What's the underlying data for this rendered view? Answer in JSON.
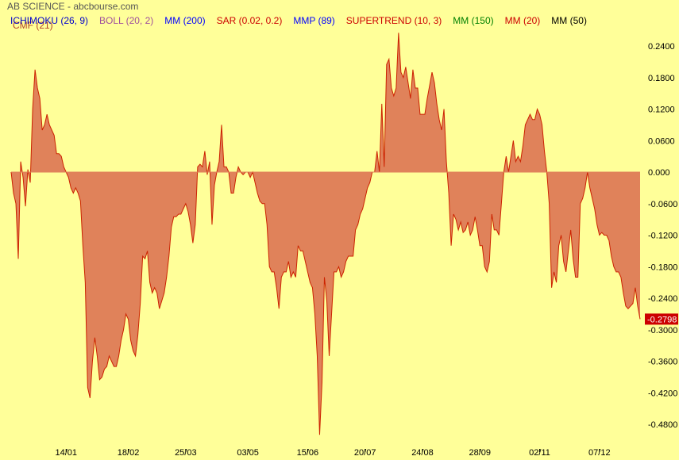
{
  "header": {
    "title": "AB SCIENCE - abcbourse.com",
    "indicator_label": "CMF (21)"
  },
  "legend": [
    {
      "label": "ICHIMOKU (26, 9)",
      "color": "#0000cc"
    },
    {
      "label": "BOLL (20, 2)",
      "color": "#a0509c"
    },
    {
      "label": "MM (200)",
      "color": "#0000ff"
    },
    {
      "label": "SAR (0.02, 0.2)",
      "color": "#cc0000"
    },
    {
      "label": "MMP (89)",
      "color": "#0000ff"
    },
    {
      "label": "SUPERTREND (10, 3)",
      "color": "#cc0000"
    },
    {
      "label": "MM (150)",
      "color": "#008000"
    },
    {
      "label": "MM (20)",
      "color": "#cc0000"
    },
    {
      "label": "MM (50)",
      "color": "#000000"
    }
  ],
  "colors": {
    "background": "#ffff99",
    "fill": "#e0825a",
    "stroke": "#cc2200",
    "zero_line": "#e0825a",
    "last_value_bg": "#cc0000"
  },
  "chart_data": {
    "type": "area",
    "title": "CMF (21)",
    "ylim": [
      -0.51,
      0.27
    ],
    "y_ticks": [
      "0.2400",
      "0.1800",
      "0.1200",
      "0.0600",
      "0.000",
      "-0.0600",
      "-0.1200",
      "-0.1800",
      "-0.2400",
      "-0.3000",
      "-0.3600",
      "-0.4200",
      "-0.4800"
    ],
    "y_tick_values": [
      0.24,
      0.18,
      0.12,
      0.06,
      0.0,
      -0.06,
      -0.12,
      -0.18,
      -0.24,
      -0.3,
      -0.36,
      -0.42,
      -0.48
    ],
    "x_tick_labels": [
      "14/01",
      "18/02",
      "25/03",
      "03/05",
      "15/06",
      "20/07",
      "24/08",
      "28/09",
      "02/11",
      "07/12"
    ],
    "x_tick_index": [
      23,
      49,
      73,
      99,
      124,
      148,
      172,
      196,
      221,
      246
    ],
    "last_value": -0.2798,
    "last_value_label": "-0.2798",
    "values": [
      0.0,
      -0.04,
      -0.06,
      -0.165,
      0.02,
      -0.01,
      -0.065,
      0.005,
      -0.02,
      0.12,
      0.195,
      0.16,
      0.14,
      0.08,
      0.09,
      0.11,
      0.09,
      0.08,
      0.07,
      0.035,
      0.035,
      0.03,
      0.01,
      0.0,
      -0.01,
      -0.03,
      -0.04,
      -0.03,
      -0.04,
      -0.055,
      -0.14,
      -0.21,
      -0.41,
      -0.43,
      -0.36,
      -0.315,
      -0.35,
      -0.395,
      -0.39,
      -0.375,
      -0.37,
      -0.35,
      -0.36,
      -0.37,
      -0.37,
      -0.35,
      -0.32,
      -0.3,
      -0.27,
      -0.28,
      -0.32,
      -0.34,
      -0.35,
      -0.31,
      -0.25,
      -0.16,
      -0.165,
      -0.15,
      -0.21,
      -0.23,
      -0.22,
      -0.23,
      -0.26,
      -0.245,
      -0.23,
      -0.2,
      -0.16,
      -0.105,
      -0.085,
      -0.085,
      -0.08,
      -0.08,
      -0.07,
      -0.06,
      -0.075,
      -0.1,
      -0.135,
      -0.1,
      0.01,
      0.015,
      0.01,
      0.04,
      -0.005,
      0.02,
      -0.1,
      -0.025,
      0.0,
      0.02,
      0.09,
      0.01,
      0.01,
      0.0,
      -0.04,
      -0.04,
      -0.01,
      0.01,
      0.0,
      -0.005,
      0.0,
      0.0,
      -0.01,
      0.0,
      -0.02,
      -0.04,
      -0.055,
      -0.06,
      -0.06,
      -0.1,
      -0.18,
      -0.19,
      -0.19,
      -0.22,
      -0.26,
      -0.2,
      -0.19,
      -0.19,
      -0.17,
      -0.2,
      -0.19,
      -0.2,
      -0.14,
      -0.15,
      -0.15,
      -0.17,
      -0.19,
      -0.21,
      -0.22,
      -0.27,
      -0.35,
      -0.5,
      -0.4,
      -0.2,
      -0.245,
      -0.35,
      -0.27,
      -0.19,
      -0.19,
      -0.18,
      -0.2,
      -0.19,
      -0.17,
      -0.16,
      -0.16,
      -0.16,
      -0.11,
      -0.1,
      -0.08,
      -0.07,
      -0.05,
      -0.03,
      -0.02,
      0.0,
      0.0,
      0.04,
      0.0,
      0.13,
      0.01,
      0.205,
      0.215,
      0.16,
      0.145,
      0.16,
      0.265,
      0.19,
      0.18,
      0.2,
      0.17,
      0.14,
      0.195,
      0.16,
      0.16,
      0.11,
      0.11,
      0.11,
      0.14,
      0.165,
      0.19,
      0.17,
      0.13,
      0.1,
      0.08,
      0.12,
      0.02,
      -0.04,
      -0.14,
      -0.08,
      -0.09,
      -0.11,
      -0.095,
      -0.115,
      -0.11,
      -0.095,
      -0.12,
      -0.11,
      -0.085,
      -0.11,
      -0.14,
      -0.14,
      -0.18,
      -0.19,
      -0.17,
      -0.08,
      -0.11,
      -0.11,
      -0.12,
      -0.06,
      0.0,
      0.03,
      0.0,
      0.03,
      0.06,
      0.02,
      0.03,
      0.02,
      0.05,
      0.09,
      0.1,
      0.11,
      0.1,
      0.1,
      0.12,
      0.11,
      0.09,
      0.04,
      0.0,
      -0.06,
      -0.22,
      -0.19,
      -0.21,
      -0.14,
      -0.12,
      -0.17,
      -0.19,
      -0.15,
      -0.11,
      -0.165,
      -0.2,
      -0.2,
      -0.06,
      -0.05,
      -0.03,
      0.0,
      -0.03,
      -0.05,
      -0.07,
      -0.1,
      -0.12,
      -0.115,
      -0.12,
      -0.12,
      -0.13,
      -0.16,
      -0.18,
      -0.19,
      -0.19,
      -0.2,
      -0.23,
      -0.255,
      -0.26,
      -0.255,
      -0.25,
      -0.22,
      -0.255,
      -0.2798
    ]
  }
}
